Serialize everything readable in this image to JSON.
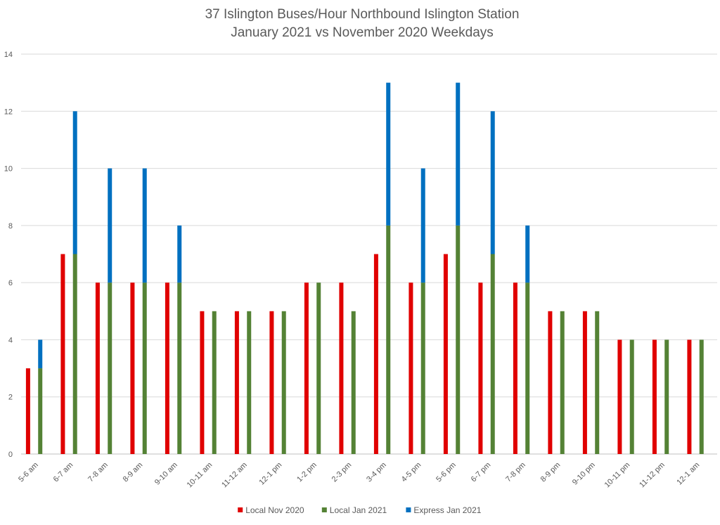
{
  "chart_data": {
    "type": "bar",
    "title": "37 Islington Buses/Hour Northbound Islington Station",
    "subtitle": "January 2021 vs November 2020 Weekdays",
    "xlabel": "",
    "ylabel": "",
    "ylim": [
      0,
      14
    ],
    "yticks": [
      0,
      2,
      4,
      6,
      8,
      10,
      12,
      14
    ],
    "grid": true,
    "legend_position": "bottom",
    "categories": [
      "5-6 am",
      "6-7 am",
      "7-8 am",
      "8-9 am",
      "9-10 am",
      "10-11 am",
      "11-12 am",
      "12-1 pm",
      "1-2 pm",
      "2-3 pm",
      "3-4 pm",
      "4-5 pm",
      "5-6 pm",
      "6-7 pm",
      "7-8 pm",
      "8-9 pm",
      "9-10 pm",
      "10-11 pm",
      "11-12 pm",
      "12-1 am"
    ],
    "series": [
      {
        "name": "Local Nov 2020",
        "color": "#e00000",
        "stack": "nov",
        "values": [
          3,
          7,
          6,
          6,
          6,
          5,
          5,
          5,
          6,
          6,
          7,
          6,
          7,
          6,
          6,
          5,
          5,
          4,
          4,
          4
        ]
      },
      {
        "name": "Local Jan 2021",
        "color": "#548235",
        "stack": "jan",
        "values": [
          3,
          7,
          6,
          6,
          6,
          5,
          5,
          5,
          6,
          5,
          8,
          6,
          8,
          7,
          6,
          5,
          5,
          4,
          4,
          4
        ]
      },
      {
        "name": "Express Jan 2021",
        "color": "#0070c0",
        "stack": "jan",
        "values": [
          1,
          5,
          4,
          4,
          2,
          0,
          0,
          0,
          0,
          0,
          5,
          4,
          5,
          5,
          2,
          0,
          0,
          0,
          0,
          0
        ]
      }
    ]
  }
}
